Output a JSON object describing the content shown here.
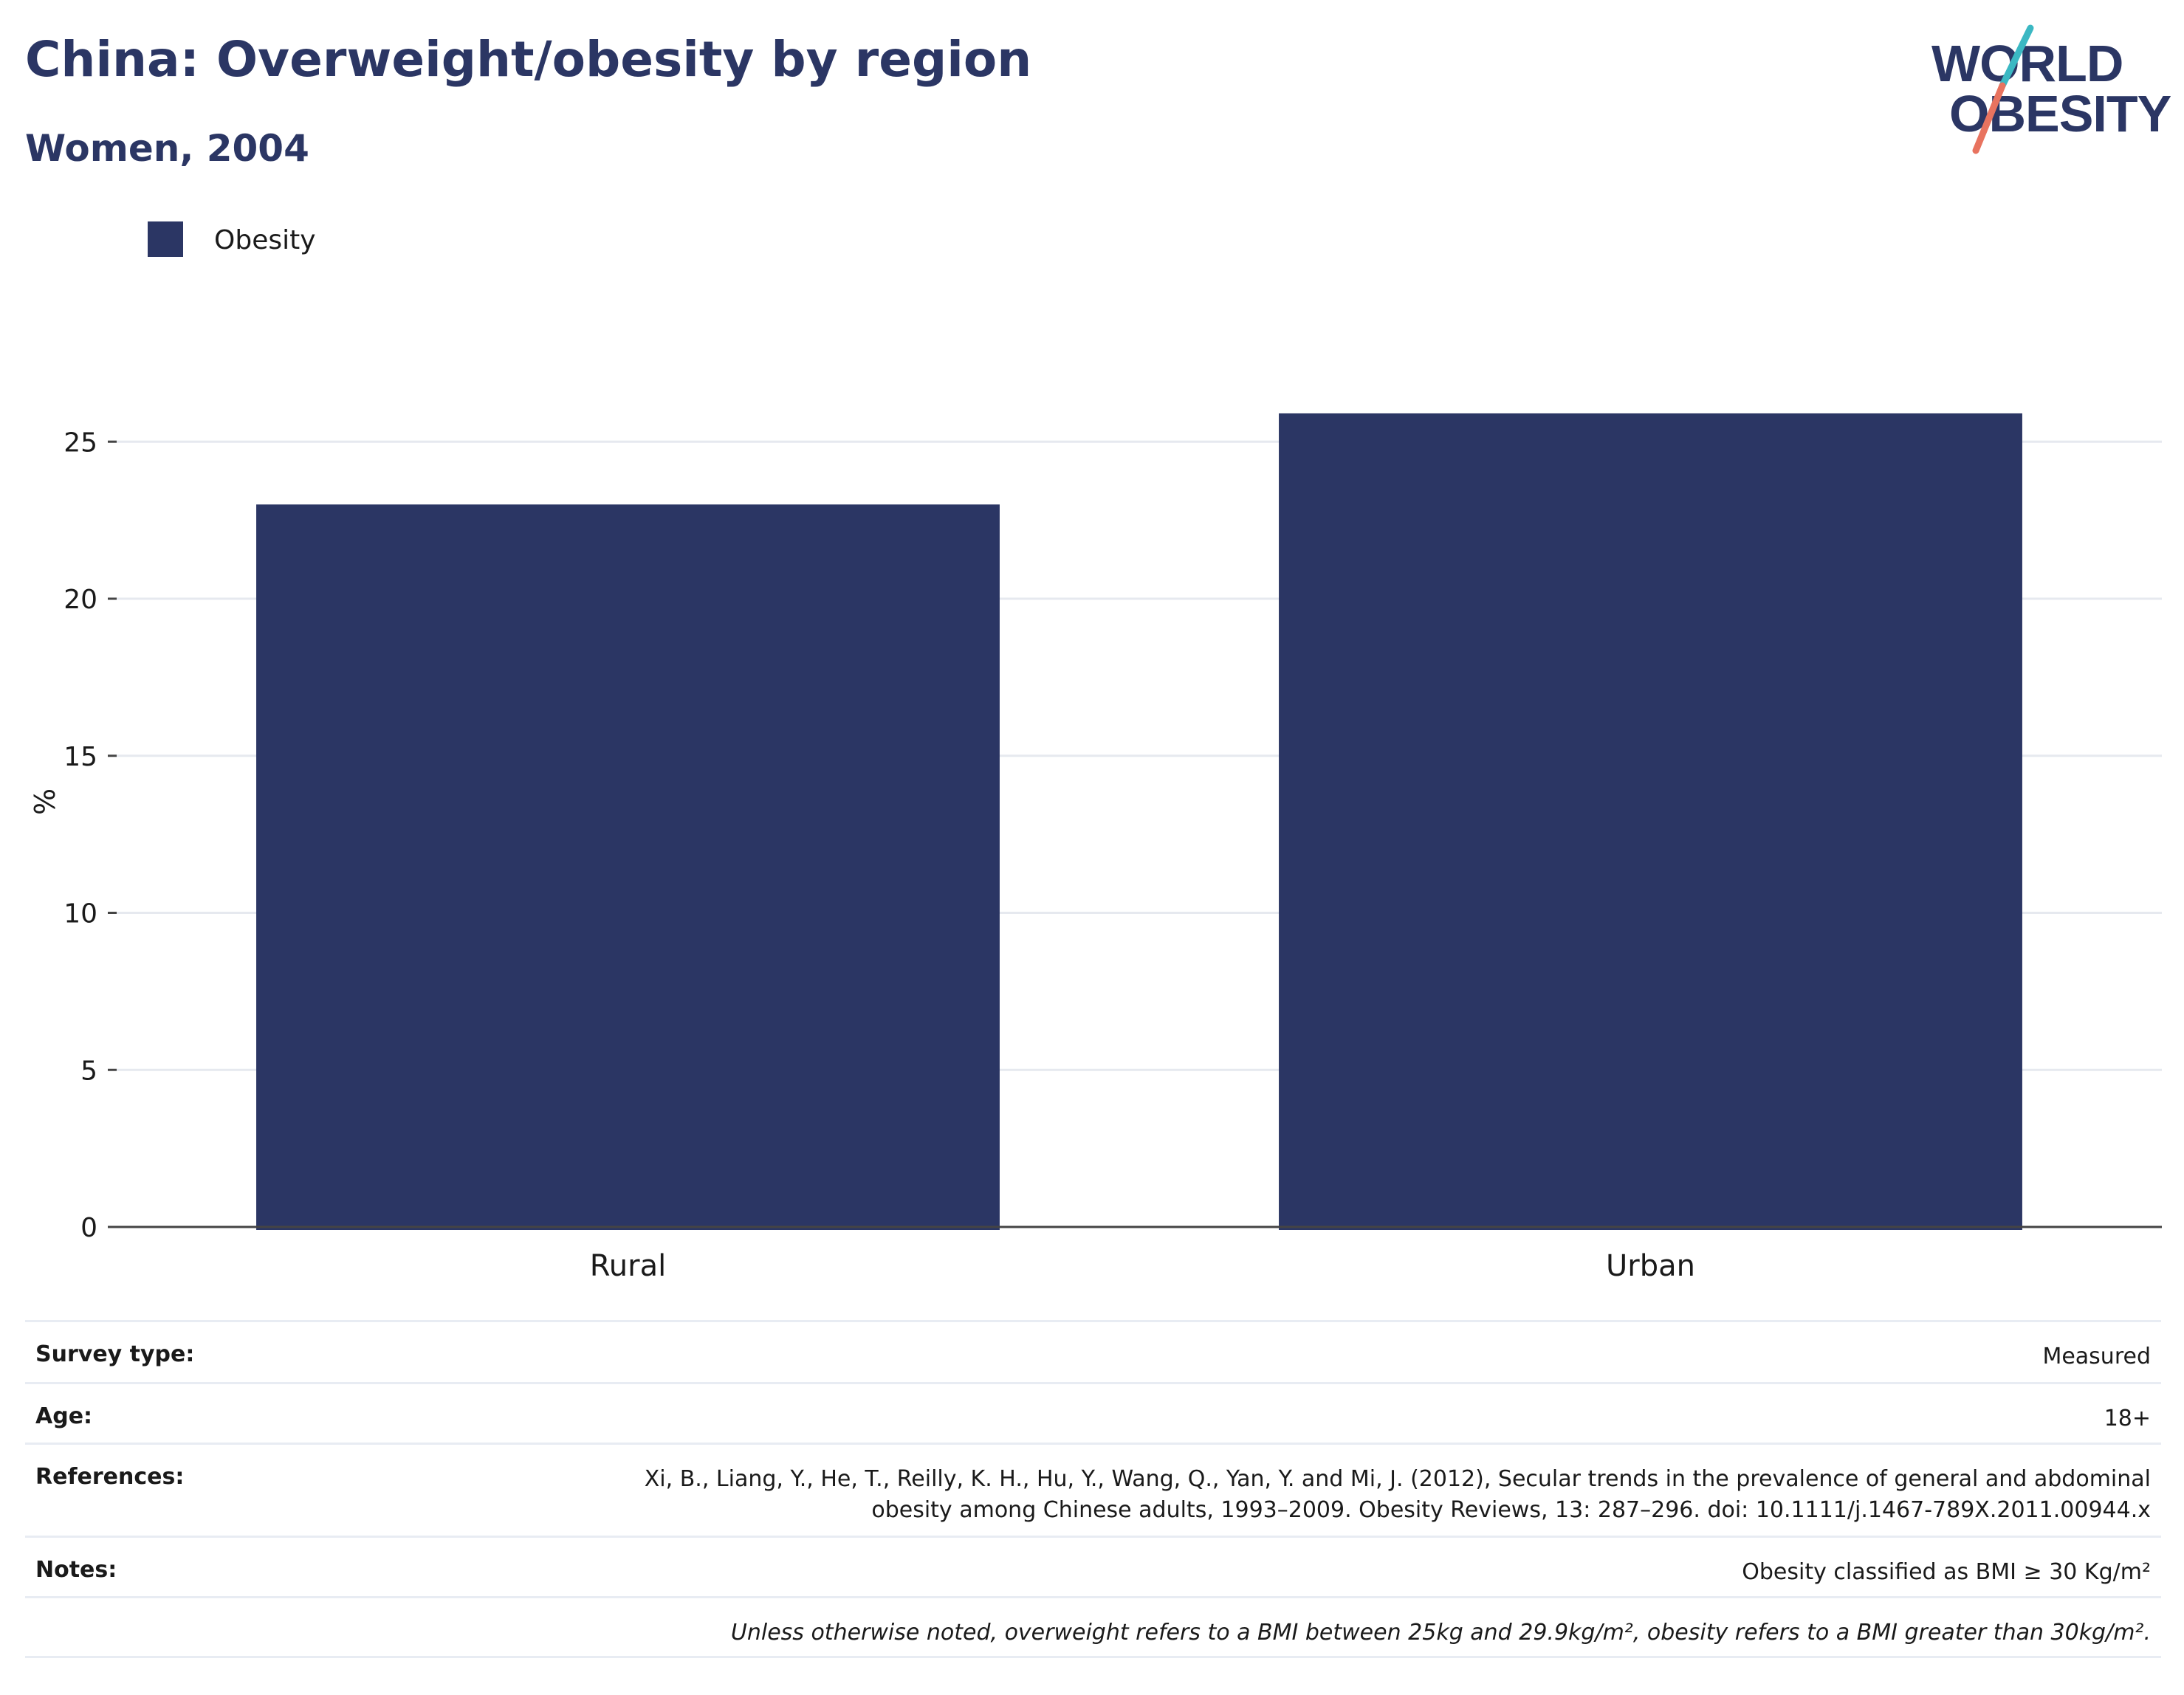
{
  "header": {
    "title": "China: Overweight/obesity by region",
    "subtitle": "Women, 2004"
  },
  "logo": {
    "line1": "WORLD",
    "line2": "OBESITY",
    "accent_teal": "#3bb8c3",
    "accent_coral": "#e8735f",
    "text_color": "#2b3664"
  },
  "chart_data": {
    "type": "bar",
    "categories": [
      "Rural",
      "Urban"
    ],
    "series": [
      {
        "name": "Obesity",
        "values": [
          23.0,
          25.9
        ],
        "color": "#2b3664"
      }
    ],
    "ylabel": "%",
    "ylim": [
      0,
      26
    ],
    "yticks": [
      0,
      5,
      10,
      15,
      20,
      25
    ],
    "grid": true,
    "legend_position": "top-left"
  },
  "metadata": {
    "rows": [
      {
        "label": "Survey type:",
        "value": "Measured"
      },
      {
        "label": "Age:",
        "value": "18+"
      },
      {
        "label": "References:",
        "value_lines": [
          "Xi, B., Liang, Y., He, T., Reilly, K. H., Hu, Y., Wang, Q., Yan, Y. and Mi, J. (2012), Secular trends in the prevalence of general and abdominal",
          "obesity among Chinese adults, 1993–2009. Obesity Reviews, 13: 287–296. doi: 10.1111/j.1467-789X.2011.00944.x"
        ]
      },
      {
        "label": "Notes:",
        "value": "Obesity classified as BMI ≥ 30 Kg/m²"
      }
    ],
    "footnote": "Unless otherwise noted, overweight refers to a BMI between 25kg and 29.9kg/m², obesity refers to a BMI greater than 30kg/m²."
  }
}
